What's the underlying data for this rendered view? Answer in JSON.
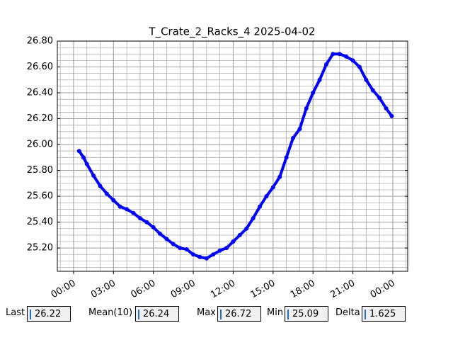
{
  "chart_data": {
    "type": "line",
    "title": "T_Crate_2_Racks_4 2025-04-02",
    "x": [
      0.42,
      0.75,
      1.0,
      1.5,
      2.0,
      2.5,
      3.0,
      3.5,
      4.0,
      4.5,
      5.0,
      5.5,
      6.0,
      6.5,
      7.0,
      7.5,
      8.0,
      8.5,
      9.0,
      9.5,
      10.0,
      10.5,
      11.0,
      11.5,
      12.0,
      12.5,
      13.0,
      13.5,
      14.0,
      14.5,
      15.0,
      15.5,
      16.0,
      16.5,
      17.0,
      17.5,
      18.0,
      18.5,
      19.0,
      19.5,
      20.0,
      20.5,
      21.0,
      21.5,
      22.0,
      22.5,
      23.0,
      23.5,
      23.92
    ],
    "series": [
      {
        "name": "T_Crate_2_Racks_4",
        "color": "#0000ff",
        "values": [
          25.95,
          25.9,
          25.85,
          25.76,
          25.68,
          25.62,
          25.57,
          25.52,
          25.5,
          25.47,
          25.43,
          25.4,
          25.36,
          25.31,
          25.27,
          25.23,
          25.2,
          25.19,
          25.15,
          25.13,
          25.12,
          25.15,
          25.18,
          25.2,
          25.25,
          25.3,
          25.35,
          25.43,
          25.52,
          25.6,
          25.67,
          25.75,
          25.9,
          26.05,
          26.12,
          26.28,
          26.4,
          26.5,
          26.62,
          26.7,
          26.7,
          26.68,
          26.65,
          26.6,
          26.5,
          26.42,
          26.36,
          26.28,
          26.22
        ]
      }
    ],
    "xlim": [
      -1.22,
      25.12
    ],
    "ylim": [
      25.02,
      26.8
    ],
    "xticks": [
      {
        "value": 0,
        "label": "00:00"
      },
      {
        "value": 3,
        "label": "03:00"
      },
      {
        "value": 6,
        "label": "06:00"
      },
      {
        "value": 9,
        "label": "09:00"
      },
      {
        "value": 12,
        "label": "12:00"
      },
      {
        "value": 15,
        "label": "15:00"
      },
      {
        "value": 18,
        "label": "18:00"
      },
      {
        "value": 21,
        "label": "21:00"
      },
      {
        "value": 24,
        "label": "00:00"
      }
    ],
    "yticks": [
      {
        "value": 25.2,
        "label": "25.20"
      },
      {
        "value": 25.4,
        "label": "25.40"
      },
      {
        "value": 25.6,
        "label": "25.60"
      },
      {
        "value": 25.8,
        "label": "25.80"
      },
      {
        "value": 26.0,
        "label": "26.00"
      },
      {
        "value": 26.2,
        "label": "26.20"
      },
      {
        "value": 26.4,
        "label": "26.40"
      },
      {
        "value": 26.6,
        "label": "26.60"
      },
      {
        "value": 26.8,
        "label": "26.80"
      }
    ],
    "grid": true,
    "minor_grid": {
      "x": 1,
      "y": 0.05
    }
  },
  "stats": [
    {
      "label": "Last",
      "value": 26.22
    },
    {
      "label": "Mean(10)",
      "value": 26.24
    },
    {
      "label": "Max",
      "value": 26.72
    },
    {
      "label": "Min",
      "value": 25.09
    },
    {
      "label": "Delta",
      "value": 1.625
    }
  ]
}
